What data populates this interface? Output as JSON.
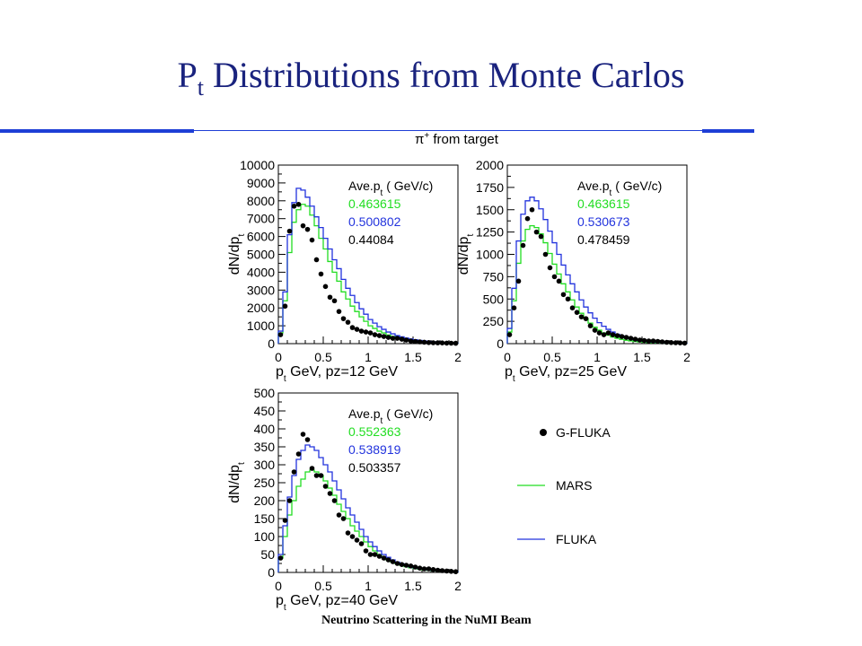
{
  "slide": {
    "title_main": "P",
    "title_sub": "t",
    "title_rest": " Distributions from Monte Carlos",
    "plot_title_pre": "π",
    "plot_title_sup": "+",
    "plot_title_post": " from target",
    "footer": "Neutrino Scattering in the NuMI Beam"
  },
  "colors": {
    "mars": "#22dd22",
    "fluka": "#2233dd",
    "gfluka": "#000000",
    "rule": "#1e3ed6",
    "title": "#1a237e"
  },
  "legend": [
    {
      "label": "G-FLUKA",
      "marker": "dot"
    },
    {
      "label": "MARS",
      "marker": "line"
    },
    {
      "label": "FLUKA",
      "marker": "line"
    }
  ],
  "chart_data": [
    {
      "type": "line",
      "xlabel": "p_t GeV, pz=12 GeV",
      "ylabel": "dN/dp_t",
      "xlim": [
        0,
        2
      ],
      "ylim": [
        0,
        10000
      ],
      "xticks": [
        0,
        0.5,
        1,
        1.5,
        2
      ],
      "yticks": [
        0,
        1000,
        2000,
        3000,
        4000,
        5000,
        6000,
        7000,
        8000,
        9000,
        10000
      ],
      "annotation_header": "Ave.p_t ( GeV/c)",
      "averages": {
        "MARS": "0.463615",
        "FLUKA": "0.500802",
        "G-FLUKA": "0.44084"
      },
      "x": [
        0.025,
        0.075,
        0.125,
        0.175,
        0.225,
        0.275,
        0.325,
        0.375,
        0.425,
        0.475,
        0.525,
        0.575,
        0.625,
        0.675,
        0.725,
        0.775,
        0.825,
        0.875,
        0.925,
        0.975,
        1.025,
        1.075,
        1.125,
        1.175,
        1.225,
        1.275,
        1.325,
        1.375,
        1.425,
        1.475,
        1.525,
        1.575,
        1.625,
        1.675,
        1.725,
        1.775,
        1.825,
        1.875,
        1.925,
        1.975
      ],
      "series": [
        {
          "name": "MARS",
          "style": "step",
          "values": [
            600,
            2400,
            5100,
            6800,
            7500,
            7800,
            7700,
            7200,
            6600,
            5900,
            5300,
            4600,
            4000,
            3500,
            2900,
            2500,
            2100,
            1800,
            1500,
            1250,
            1000,
            850,
            700,
            600,
            480,
            400,
            330,
            270,
            220,
            180,
            150,
            120,
            100,
            80,
            70,
            60,
            50,
            40,
            35,
            30
          ]
        },
        {
          "name": "FLUKA",
          "style": "step",
          "values": [
            700,
            2900,
            6100,
            7900,
            8700,
            8600,
            8200,
            7700,
            7100,
            6500,
            5900,
            5300,
            4700,
            4200,
            3600,
            3100,
            2700,
            2300,
            1950,
            1650,
            1350,
            1150,
            950,
            800,
            650,
            550,
            450,
            380,
            310,
            260,
            220,
            180,
            150,
            120,
            100,
            85,
            70,
            55,
            45,
            35
          ]
        },
        {
          "name": "G-FLUKA",
          "style": "points",
          "values": [
            500,
            2100,
            6300,
            7700,
            7800,
            6600,
            6400,
            5800,
            4700,
            3900,
            3200,
            2600,
            2400,
            1800,
            1400,
            1200,
            900,
            800,
            700,
            650,
            600,
            500,
            450,
            400,
            350,
            300,
            300,
            250,
            200,
            150,
            120,
            100,
            80,
            60,
            50,
            45,
            40,
            30,
            25,
            20
          ]
        }
      ]
    },
    {
      "type": "line",
      "xlabel": "p_t GeV, pz=25 GeV",
      "ylabel": "dN/dp_t",
      "xlim": [
        0,
        2
      ],
      "ylim": [
        0,
        2000
      ],
      "xticks": [
        0,
        0.5,
        1,
        1.5,
        2
      ],
      "yticks": [
        0,
        250,
        500,
        750,
        1000,
        1250,
        1500,
        1750,
        2000
      ],
      "annotation_header": "Ave.p_t ( GeV/c)",
      "averages": {
        "MARS": "0.463615",
        "FLUKA": "0.530673",
        "G-FLUKA": "0.478459"
      },
      "x": [
        0.025,
        0.075,
        0.125,
        0.175,
        0.225,
        0.275,
        0.325,
        0.375,
        0.425,
        0.475,
        0.525,
        0.575,
        0.625,
        0.675,
        0.725,
        0.775,
        0.825,
        0.875,
        0.925,
        0.975,
        1.025,
        1.075,
        1.125,
        1.175,
        1.225,
        1.275,
        1.325,
        1.375,
        1.425,
        1.475,
        1.525,
        1.575,
        1.625,
        1.675,
        1.725,
        1.775,
        1.825,
        1.875,
        1.925,
        1.975
      ],
      "series": [
        {
          "name": "MARS",
          "style": "step",
          "values": [
            130,
            480,
            900,
            1150,
            1280,
            1320,
            1300,
            1230,
            1130,
            1010,
            890,
            780,
            670,
            580,
            490,
            410,
            340,
            280,
            230,
            185,
            150,
            120,
            95,
            75,
            60,
            48,
            38,
            30,
            24,
            19,
            15,
            12,
            10,
            8,
            6,
            5,
            4,
            3,
            3,
            2
          ]
        },
        {
          "name": "FLUKA",
          "style": "step",
          "values": [
            170,
            620,
            1150,
            1450,
            1600,
            1640,
            1600,
            1510,
            1390,
            1260,
            1130,
            1000,
            880,
            770,
            670,
            580,
            490,
            410,
            345,
            285,
            235,
            195,
            160,
            130,
            105,
            85,
            68,
            55,
            44,
            35,
            28,
            22,
            18,
            14,
            11,
            9,
            7,
            6,
            5,
            4
          ]
        },
        {
          "name": "G-FLUKA",
          "style": "points",
          "values": [
            100,
            400,
            700,
            1100,
            1400,
            1500,
            1250,
            1200,
            1000,
            850,
            750,
            700,
            550,
            500,
            400,
            350,
            300,
            280,
            200,
            150,
            120,
            100,
            120,
            100,
            90,
            80,
            70,
            60,
            50,
            40,
            35,
            30,
            30,
            25,
            20,
            15,
            12,
            10,
            8,
            6
          ]
        }
      ]
    },
    {
      "type": "line",
      "xlabel": "p_t GeV, pz=40 GeV",
      "ylabel": "dN/dp_t",
      "xlim": [
        0,
        2
      ],
      "ylim": [
        0,
        500
      ],
      "xticks": [
        0,
        0.5,
        1,
        1.5,
        2
      ],
      "yticks": [
        0,
        50,
        100,
        150,
        200,
        250,
        300,
        350,
        400,
        450,
        500
      ],
      "annotation_header": "Ave.p_t ( GeV/c)",
      "averages": {
        "MARS": "0.552363",
        "FLUKA": "0.538919",
        "G-FLUKA": "0.503357"
      },
      "x": [
        0.025,
        0.075,
        0.125,
        0.175,
        0.225,
        0.275,
        0.325,
        0.375,
        0.425,
        0.475,
        0.525,
        0.575,
        0.625,
        0.675,
        0.725,
        0.775,
        0.825,
        0.875,
        0.925,
        0.975,
        1.025,
        1.075,
        1.125,
        1.175,
        1.225,
        1.275,
        1.325,
        1.375,
        1.425,
        1.475,
        1.525,
        1.575,
        1.625,
        1.675,
        1.725,
        1.775,
        1.825,
        1.875,
        1.925,
        1.975
      ],
      "series": [
        {
          "name": "MARS",
          "style": "step",
          "values": [
            40,
            100,
            160,
            200,
            240,
            260,
            280,
            285,
            280,
            270,
            255,
            235,
            215,
            190,
            170,
            150,
            130,
            115,
            100,
            85,
            72,
            60,
            50,
            42,
            35,
            29,
            24,
            20,
            16,
            13,
            11,
            9,
            7,
            6,
            5,
            4,
            3,
            3,
            2,
            2
          ]
        },
        {
          "name": "FLUKA",
          "style": "step",
          "values": [
            50,
            130,
            210,
            270,
            315,
            340,
            355,
            350,
            340,
            320,
            300,
            280,
            255,
            230,
            205,
            180,
            160,
            140,
            120,
            100,
            85,
            72,
            60,
            50,
            42,
            35,
            29,
            24,
            20,
            16,
            13,
            11,
            9,
            7,
            6,
            5,
            4,
            3,
            3,
            2
          ]
        },
        {
          "name": "G-FLUKA",
          "style": "points",
          "values": [
            40,
            145,
            200,
            280,
            330,
            385,
            370,
            290,
            270,
            270,
            240,
            220,
            200,
            160,
            150,
            110,
            100,
            90,
            80,
            60,
            50,
            50,
            45,
            40,
            35,
            30,
            25,
            22,
            20,
            18,
            15,
            12,
            10,
            10,
            8,
            6,
            5,
            4,
            3,
            2
          ]
        }
      ]
    }
  ]
}
